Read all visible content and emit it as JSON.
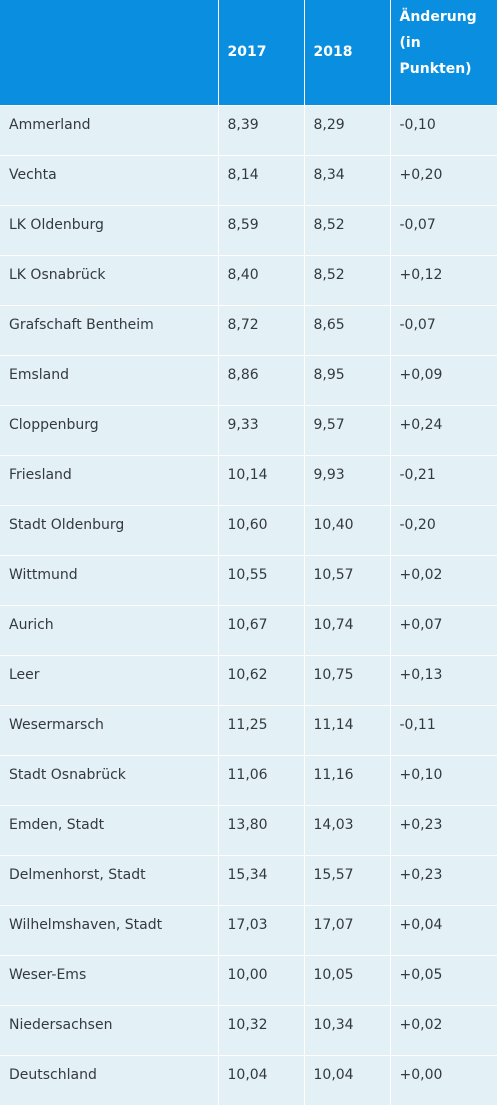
{
  "table": {
    "headers": {
      "region": "",
      "year_2017": "2017",
      "year_2018": "2018",
      "change_line1": "Änderung",
      "change_line2": "(in",
      "change_line3": "Punkten)"
    },
    "rows": [
      {
        "region": "Ammerland",
        "y2017": "8,39",
        "y2018": "8,29",
        "change": "-0,10"
      },
      {
        "region": "Vechta",
        "y2017": "8,14",
        "y2018": "8,34",
        "change": "+0,20"
      },
      {
        "region": "LK Oldenburg",
        "y2017": "8,59",
        "y2018": "8,52",
        "change": "-0,07"
      },
      {
        "region": "LK Osnabrück",
        "y2017": "8,40",
        "y2018": "8,52",
        "change": "+0,12"
      },
      {
        "region": "Grafschaft Bentheim",
        "y2017": "8,72",
        "y2018": "8,65",
        "change": "-0,07"
      },
      {
        "region": "Emsland",
        "y2017": "8,86",
        "y2018": "8,95",
        "change": "+0,09"
      },
      {
        "region": "Cloppenburg",
        "y2017": "9,33",
        "y2018": "9,57",
        "change": "+0,24"
      },
      {
        "region": "Friesland",
        "y2017": "10,14",
        "y2018": "9,93",
        "change": "-0,21"
      },
      {
        "region": "Stadt Oldenburg",
        "y2017": "10,60",
        "y2018": "10,40",
        "change": "-0,20"
      },
      {
        "region": "Wittmund",
        "y2017": "10,55",
        "y2018": "10,57",
        "change": "+0,02"
      },
      {
        "region": "Aurich",
        "y2017": "10,67",
        "y2018": "10,74",
        "change": "+0,07"
      },
      {
        "region": "Leer",
        "y2017": "10,62",
        "y2018": "10,75",
        "change": "+0,13"
      },
      {
        "region": "Wesermarsch",
        "y2017": "11,25",
        "y2018": "11,14",
        "change": "-0,11"
      },
      {
        "region": "Stadt Osnabrück",
        "y2017": "11,06",
        "y2018": "11,16",
        "change": "+0,10"
      },
      {
        "region": "Emden, Stadt",
        "y2017": "13,80",
        "y2018": "14,03",
        "change": "+0,23"
      },
      {
        "region": "Delmenhorst, Stadt",
        "y2017": "15,34",
        "y2018": "15,57",
        "change": "+0,23"
      },
      {
        "region": "Wilhelmshaven, Stadt",
        "y2017": "17,03",
        "y2018": "17,07",
        "change": "+0,04"
      },
      {
        "region": "Weser-Ems",
        "y2017": "10,00",
        "y2018": "10,05",
        "change": "+0,05"
      },
      {
        "region": "Niedersachsen",
        "y2017": "10,32",
        "y2018": "10,34",
        "change": "+0,02"
      },
      {
        "region": "Deutschland",
        "y2017": "10,04",
        "y2018": "10,04",
        "change": "+0,00"
      }
    ]
  },
  "colors": {
    "header_bg": "#0a8fe0",
    "row_bg": "#e3f0f6",
    "text": "#333a3f"
  }
}
